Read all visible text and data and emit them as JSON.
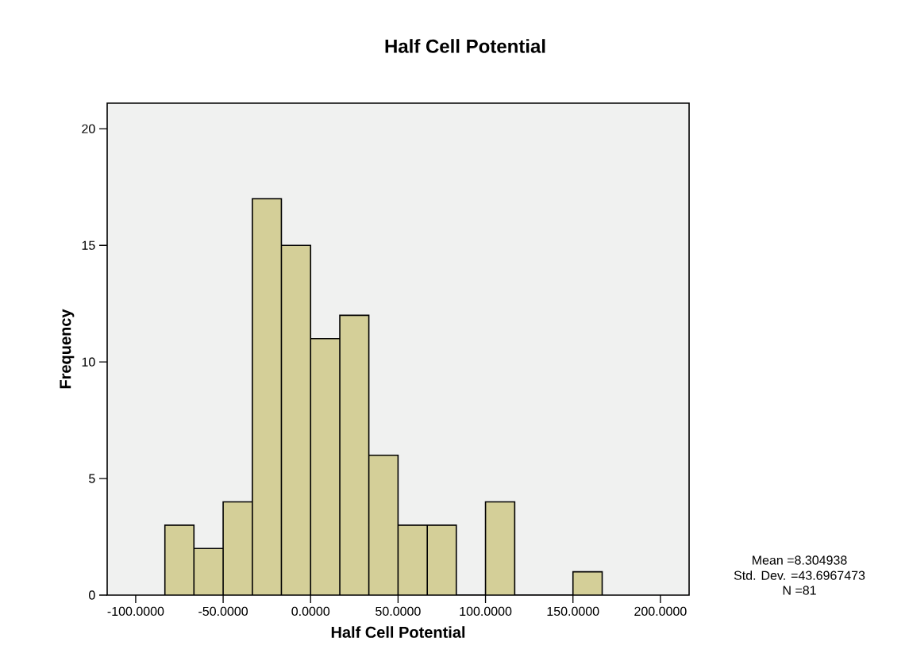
{
  "chart_data": {
    "type": "histogram",
    "title": "Half Cell Potential",
    "xlabel": "Half Cell Potential",
    "ylabel": "Frequency",
    "bins": [
      -83.3,
      -66.7,
      -50,
      -33.3,
      -16.7,
      0,
      16.7,
      33.3,
      50,
      66.7,
      83.3,
      100,
      116.7,
      133.3,
      150,
      166.7
    ],
    "values": [
      3,
      2,
      4,
      17,
      15,
      11,
      12,
      6,
      3,
      3,
      0,
      4,
      0,
      0,
      1
    ],
    "color": "#d4cf98",
    "xlim": [
      -116.3,
      216.4
    ],
    "ylim": [
      0,
      21.1
    ],
    "xticks": [
      {
        "value": -100,
        "label": "-100.0000"
      },
      {
        "value": -50,
        "label": "-50.0000"
      },
      {
        "value": 0,
        "label": "0.0000"
      },
      {
        "value": 50,
        "label": "50.0000"
      },
      {
        "value": 100,
        "label": "100.0000"
      },
      {
        "value": 150,
        "label": "150.0000"
      },
      {
        "value": 200,
        "label": "200.0000"
      }
    ],
    "yticks": [
      0,
      5,
      10,
      15,
      20
    ],
    "annotations": [
      "Mean =8.304938",
      "Std. Dev. =43.6967473",
      "N =81"
    ]
  }
}
